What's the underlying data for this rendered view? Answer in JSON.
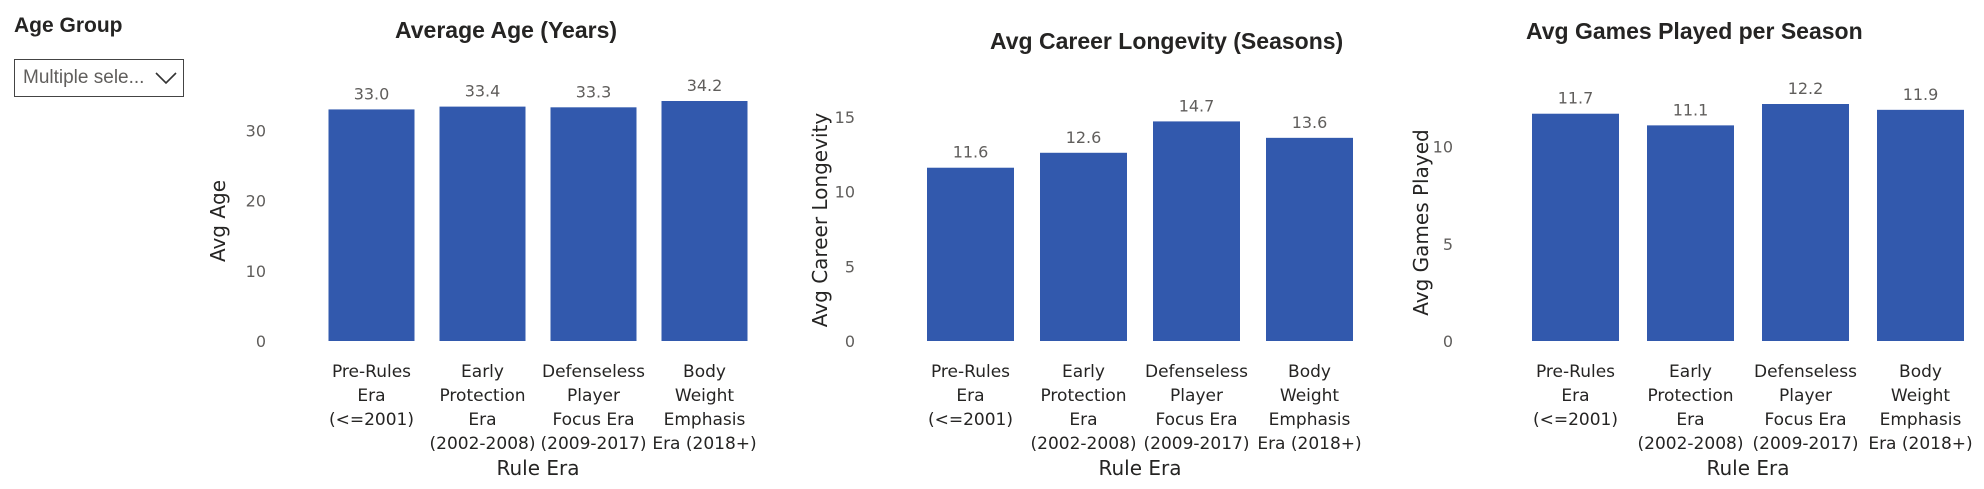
{
  "slicer": {
    "title": "Age Group",
    "value": "Multiple sele...",
    "icon": "chevron-down-icon"
  },
  "colors": {
    "bar": "#3259ad"
  },
  "chart_data": [
    {
      "type": "bar",
      "title": "Average Age (Years)",
      "xlabel": "Rule Era",
      "ylabel": "Avg Age",
      "categories": [
        "Pre-Rules Era (<=2001)",
        "Early Protection Era (2002-2008)",
        "Defenseless Player Focus Era (2009-2017)",
        "Body Weight Emphasis Era (2018+)"
      ],
      "category_lines": [
        [
          "Pre-Rules",
          "Era",
          "(<=2001)"
        ],
        [
          "Early",
          "Protection",
          "Era",
          "(2002-2008)"
        ],
        [
          "Defenseless",
          "Player",
          "Focus Era",
          "(2009-2017)"
        ],
        [
          "Body",
          "Weight",
          "Emphasis",
          "Era (2018+)"
        ]
      ],
      "values": [
        33.0,
        33.4,
        33.3,
        34.2
      ],
      "value_labels": [
        "33.0",
        "33.4",
        "33.3",
        "34.2"
      ],
      "yticks": [
        0,
        10,
        20,
        30
      ],
      "ylim": [
        0,
        34.2
      ],
      "grid": false
    },
    {
      "type": "bar",
      "title": "Avg Career Longevity (Seasons)",
      "xlabel": "Rule Era",
      "ylabel": "Avg Career Longevity",
      "categories": [
        "Pre-Rules Era (<=2001)",
        "Early Protection Era (2002-2008)",
        "Defenseless Player Focus Era (2009-2017)",
        "Body Weight Emphasis Era (2018+)"
      ],
      "category_lines": [
        [
          "Pre-Rules",
          "Era",
          "(<=2001)"
        ],
        [
          "Early",
          "Protection",
          "Era",
          "(2002-2008)"
        ],
        [
          "Defenseless",
          "Player",
          "Focus Era",
          "(2009-2017)"
        ],
        [
          "Body",
          "Weight",
          "Emphasis",
          "Era (2018+)"
        ]
      ],
      "values": [
        11.6,
        12.6,
        14.7,
        13.6
      ],
      "value_labels": [
        "11.6",
        "12.6",
        "14.7",
        "13.6"
      ],
      "yticks": [
        0,
        5,
        10,
        15
      ],
      "ylim": [
        0,
        16.2
      ],
      "grid": false
    },
    {
      "type": "bar",
      "title": "Avg Games Played per Season",
      "xlabel": "Rule Era",
      "ylabel": "Avg Games Played",
      "categories": [
        "Pre-Rules Era (<=2001)",
        "Early Protection Era (2002-2008)",
        "Defenseless Player Focus Era (2009-2017)",
        "Body Weight Emphasis Era (2018+)"
      ],
      "category_lines": [
        [
          "Pre-Rules",
          "Era",
          "(<=2001)"
        ],
        [
          "Early",
          "Protection",
          "Era",
          "(2002-2008)"
        ],
        [
          "Defenseless",
          "Player",
          "Focus Era",
          "(2009-2017)"
        ],
        [
          "Body",
          "Weight",
          "Emphasis",
          "Era (2018+)"
        ]
      ],
      "values": [
        11.7,
        11.1,
        12.2,
        11.9
      ],
      "value_labels": [
        "11.7",
        "11.1",
        "12.2",
        "11.9"
      ],
      "yticks": [
        0,
        5,
        10
      ],
      "ylim": [
        0,
        12.2
      ],
      "grid": false
    }
  ]
}
